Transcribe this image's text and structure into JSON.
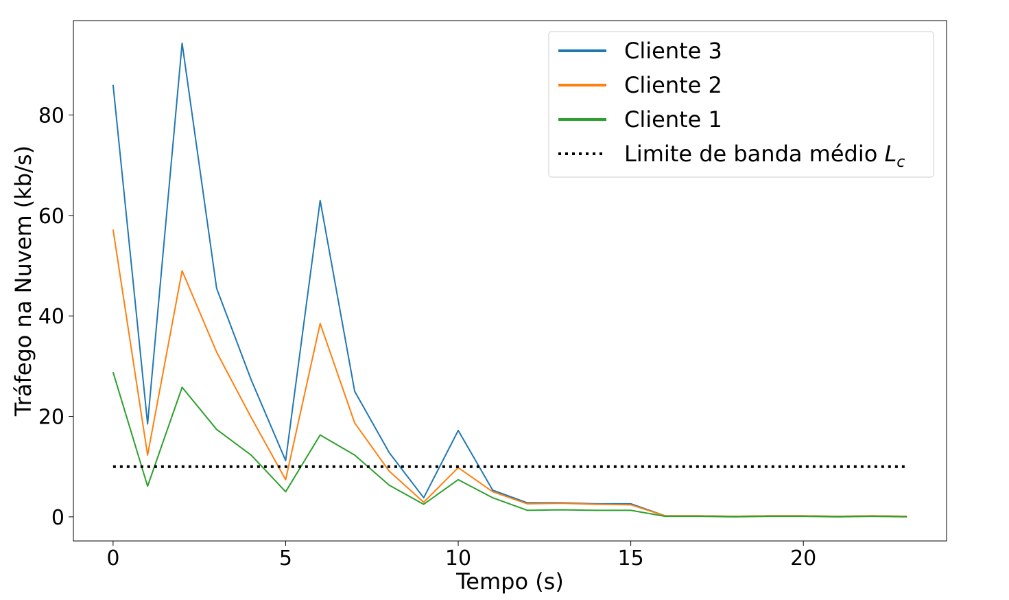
{
  "chart_data": {
    "type": "line",
    "title": "",
    "xlabel": "Tempo (s)",
    "ylabel": "Tráfego na Nuvem (kb/s)",
    "xlim": [
      -1.15,
      24.15
    ],
    "ylim": [
      -4.8,
      98.8
    ],
    "xticks": [
      0,
      5,
      10,
      15,
      20
    ],
    "yticks": [
      0,
      20,
      40,
      60,
      80
    ],
    "grid": false,
    "legend_position": "top-right",
    "x": [
      0,
      1,
      2,
      3,
      4,
      5,
      6,
      7,
      8,
      9,
      10,
      11,
      12,
      13,
      14,
      15,
      16,
      17,
      18,
      19,
      20,
      21,
      22,
      23
    ],
    "series": [
      {
        "name": "Cliente 3",
        "color": "#1f77b4",
        "values": [
          86.0,
          18.5,
          94.3,
          45.5,
          27.3,
          11.2,
          63.0,
          25.0,
          12.8,
          3.8,
          17.2,
          5.3,
          2.8,
          2.8,
          2.6,
          2.6,
          0.2,
          0.2,
          0.1,
          0.2,
          0.2,
          0.1,
          0.2,
          0.1
        ]
      },
      {
        "name": "Cliente 2",
        "color": "#ff7f0e",
        "values": [
          57.2,
          12.3,
          49.0,
          32.8,
          19.8,
          7.4,
          38.5,
          18.7,
          9.1,
          2.9,
          9.8,
          5.0,
          2.6,
          2.7,
          2.5,
          2.4,
          0.2,
          0.2,
          0.1,
          0.2,
          0.2,
          0.1,
          0.2,
          0.1
        ]
      },
      {
        "name": "Cliente 1",
        "color": "#2ca02c",
        "values": [
          28.8,
          6.1,
          25.8,
          17.4,
          12.3,
          5.0,
          16.3,
          12.3,
          6.3,
          2.5,
          7.4,
          3.8,
          1.3,
          1.4,
          1.3,
          1.3,
          0.1,
          0.1,
          0.0,
          0.1,
          0.1,
          0.0,
          0.1,
          0.0
        ]
      }
    ],
    "reference_line": {
      "name": "Limite de banda médio",
      "name_math_symbol": "L",
      "name_math_subscript": "c",
      "color": "#000000",
      "style": "dotted",
      "value": 10,
      "x_range": [
        0,
        23
      ]
    }
  }
}
